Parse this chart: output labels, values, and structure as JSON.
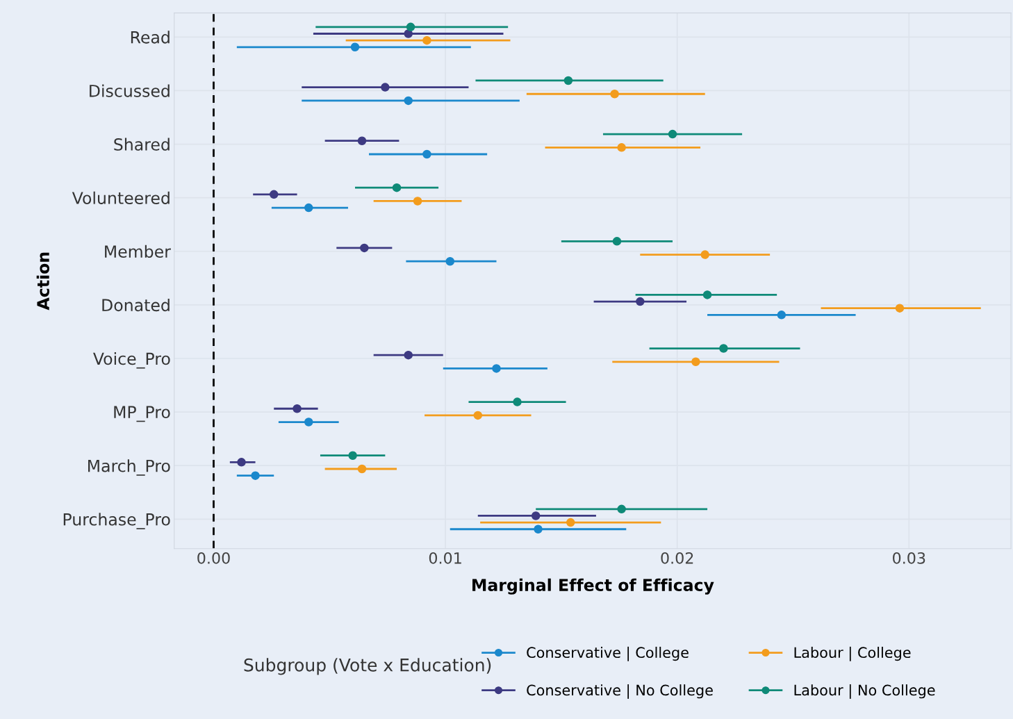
{
  "chart_data": {
    "type": "scatter",
    "orientation": "horizontal",
    "xlabel": "Marginal Effect of Efficacy",
    "ylabel": "Action",
    "legend_title": "Subgroup (Vote x Education)",
    "legend": "bottom",
    "grid": true,
    "marker": "circle",
    "categories": [
      "Read",
      "Discussed",
      "Shared",
      "Volunteered",
      "Member",
      "Donated",
      "Voice_Pro",
      "MP_Pro",
      "March_Pro",
      "Purchase_Pro"
    ],
    "xlim": [
      -0.0017,
      0.0344
    ],
    "xticks": [
      {
        "value": 0,
        "label": "0.00"
      },
      0.01,
      0.02,
      0.03
    ],
    "ref_lines": [
      {
        "axis": "x",
        "value": 0,
        "color": "#000000",
        "line_style": "dashed"
      }
    ],
    "series": [
      {
        "name": "Conservative | College",
        "color": "#1b88cc",
        "values": [
          0.0061,
          0.0084,
          0.0092,
          0.0041,
          0.0102,
          0.0245,
          0.0122,
          0.0041,
          0.0018,
          0.014
        ],
        "errors": [
          [
            0.001,
            0.0111
          ],
          [
            0.0038,
            0.0132
          ],
          [
            0.0067,
            0.0118
          ],
          [
            0.0025,
            0.0058
          ],
          [
            0.0083,
            0.0122
          ],
          [
            0.0213,
            0.0277
          ],
          [
            0.0099,
            0.0144
          ],
          [
            0.0028,
            0.0054
          ],
          [
            0.001,
            0.0026
          ],
          [
            0.0102,
            0.0178
          ]
        ]
      },
      {
        "name": "Labour | College",
        "color": "#f39c1d",
        "values": [
          0.0092,
          0.0173,
          0.0176,
          0.0088,
          0.0212,
          0.0296,
          0.0208,
          0.0114,
          0.0064,
          0.0154
        ],
        "errors": [
          [
            0.0057,
            0.0128
          ],
          [
            0.0135,
            0.0212
          ],
          [
            0.0143,
            0.021
          ],
          [
            0.0069,
            0.0107
          ],
          [
            0.0184,
            0.024
          ],
          [
            0.0262,
            0.0331
          ],
          [
            0.0172,
            0.0244
          ],
          [
            0.0091,
            0.0137
          ],
          [
            0.0048,
            0.0079
          ],
          [
            0.0115,
            0.0193
          ]
        ]
      },
      {
        "name": "Conservative | No College",
        "color": "#3d3a82",
        "values": [
          0.0084,
          0.0074,
          0.0064,
          0.0026,
          0.0065,
          0.0184,
          0.0084,
          0.0036,
          0.0012,
          0.0139
        ],
        "errors": [
          [
            0.0043,
            0.0125
          ],
          [
            0.0038,
            0.011
          ],
          [
            0.0048,
            0.008
          ],
          [
            0.0017,
            0.0036
          ],
          [
            0.0053,
            0.0077
          ],
          [
            0.0164,
            0.0204
          ],
          [
            0.0069,
            0.0099
          ],
          [
            0.0026,
            0.0045
          ],
          [
            0.0007,
            0.0018
          ],
          [
            0.0114,
            0.0165
          ]
        ]
      },
      {
        "name": "Labour | No College",
        "color": "#0f8a78",
        "values": [
          0.0085,
          0.0153,
          0.0198,
          0.0079,
          0.0174,
          0.0213,
          0.022,
          0.0131,
          0.006,
          0.0176
        ],
        "errors": [
          [
            0.0044,
            0.0127
          ],
          [
            0.0113,
            0.0194
          ],
          [
            0.0168,
            0.0228
          ],
          [
            0.0061,
            0.0097
          ],
          [
            0.015,
            0.0198
          ],
          [
            0.0182,
            0.0243
          ],
          [
            0.0188,
            0.0253
          ],
          [
            0.011,
            0.0152
          ],
          [
            0.0046,
            0.0074
          ],
          [
            0.0139,
            0.0213
          ]
        ]
      }
    ]
  }
}
